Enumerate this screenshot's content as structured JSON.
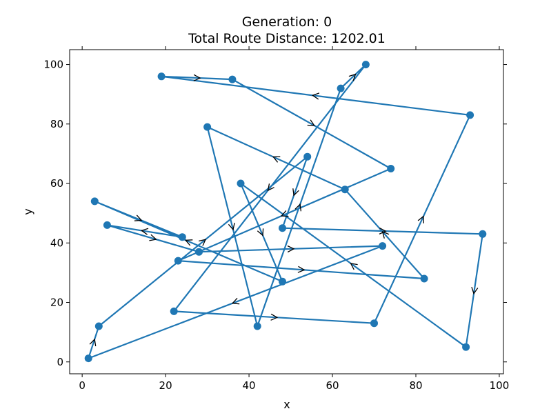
{
  "chart_data": {
    "type": "line",
    "title": "Generation: 0",
    "subtitle": "Total Route Distance: 1202.01",
    "xlabel": "x",
    "ylabel": "y",
    "xlim": [
      -3,
      101
    ],
    "ylim": [
      -4,
      105
    ],
    "xticks": [
      "0",
      "20",
      "40",
      "60",
      "80",
      "100"
    ],
    "yticks": [
      "0",
      "20",
      "40",
      "60",
      "80",
      "100"
    ],
    "grid": false,
    "series": [
      {
        "color": "#1f77b4",
        "route": [
          {
            "x": 1.5,
            "y": 1.2
          },
          {
            "x": 4,
            "y": 12
          },
          {
            "x": 54,
            "y": 69
          },
          {
            "x": 48,
            "y": 45
          },
          {
            "x": 96,
            "y": 43
          },
          {
            "x": 92,
            "y": 5
          },
          {
            "x": 38,
            "y": 60
          },
          {
            "x": 48,
            "y": 27
          },
          {
            "x": 3,
            "y": 54
          },
          {
            "x": 24,
            "y": 42
          },
          {
            "x": 6,
            "y": 46
          },
          {
            "x": 28,
            "y": 37
          },
          {
            "x": 72,
            "y": 39
          },
          {
            "x": 1.5,
            "y": 1.2
          }
        ],
        "route_b": [
          {
            "x": 23,
            "y": 34
          },
          {
            "x": 82,
            "y": 28
          },
          {
            "x": 63,
            "y": 58
          },
          {
            "x": 30,
            "y": 79
          },
          {
            "x": 42,
            "y": 12
          },
          {
            "x": 62,
            "y": 92
          },
          {
            "x": 68,
            "y": 100
          },
          {
            "x": 22,
            "y": 17
          },
          {
            "x": 70,
            "y": 13
          },
          {
            "x": 93,
            "y": 83
          },
          {
            "x": 19,
            "y": 96
          },
          {
            "x": 36,
            "y": 95
          },
          {
            "x": 74,
            "y": 65
          },
          {
            "x": 23,
            "y": 34
          }
        ]
      }
    ]
  }
}
